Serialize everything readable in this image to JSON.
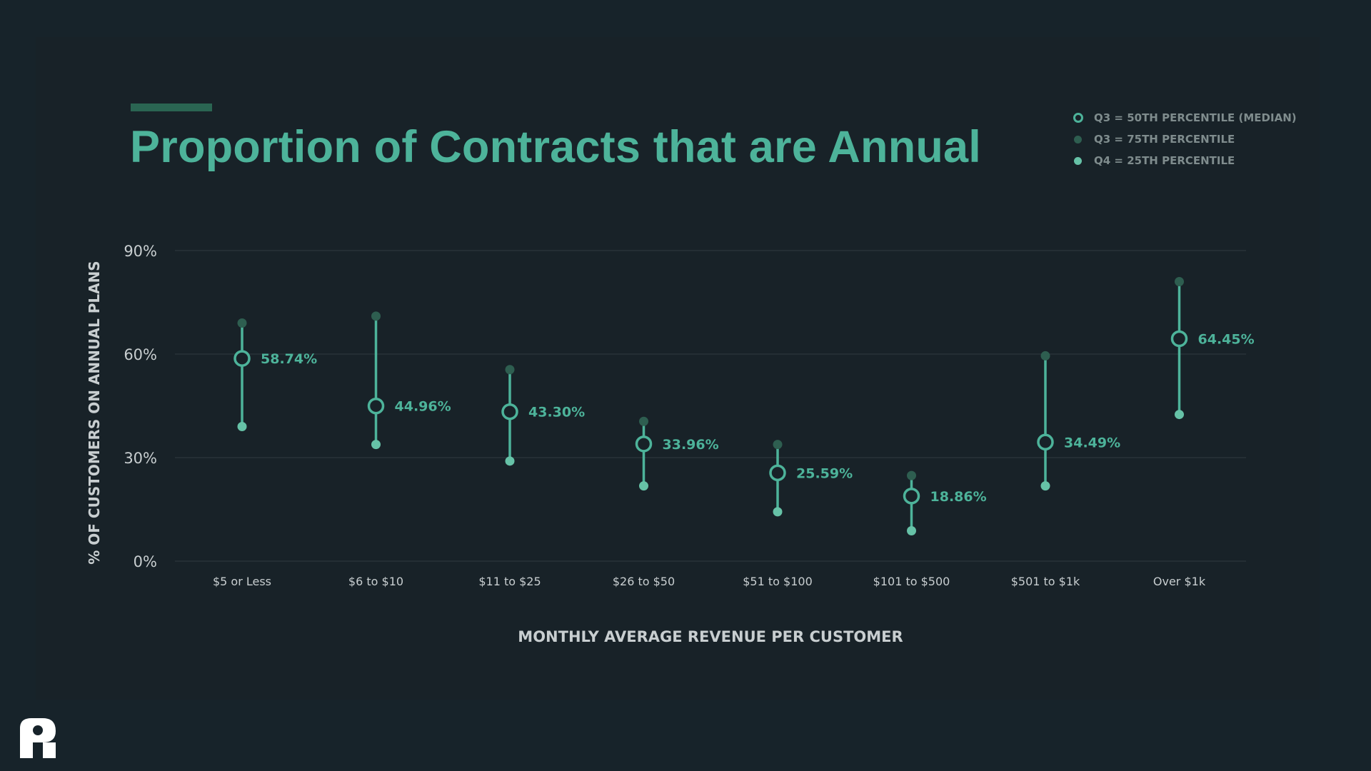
{
  "chart_data": {
    "type": "dot-range",
    "title": "Proportion of Contracts that are Annual",
    "xlabel": "MONTHLY AVERAGE REVENUE PER CUSTOMER",
    "ylabel": "% OF CUSTOMERS ON ANNUAL PLANS",
    "ylim": [
      0,
      90
    ],
    "yticks": [
      0,
      30,
      60,
      90
    ],
    "ytick_labels": [
      "0%",
      "30%",
      "60%",
      "90%"
    ],
    "grid": true,
    "legend_position": "top-right",
    "categories": [
      "$5 or Less",
      "$6 to $10",
      "$11 to $25",
      "$26 to $50",
      "$51 to $100",
      "$101 to $500",
      "$501 to $1k",
      "Over $1k"
    ],
    "series": [
      {
        "name": "Q3 = 50TH PERCENTILE (MEDIAN)",
        "values": [
          58.74,
          44.96,
          43.3,
          33.96,
          25.59,
          18.86,
          34.49,
          64.45
        ]
      },
      {
        "name": "Q3 = 75TH PERCENTILE",
        "values": [
          69,
          71,
          55.5,
          40.5,
          33.8,
          24.8,
          59.5,
          81
        ]
      },
      {
        "name": "Q4 = 25TH PERCENTILE",
        "values": [
          39,
          33.8,
          29,
          21.8,
          14.3,
          8.8,
          21.8,
          42.5
        ]
      }
    ],
    "value_labels": [
      "58.74%",
      "44.96%",
      "43.30%",
      "33.96%",
      "25.59%",
      "18.86%",
      "34.49%",
      "64.45%"
    ]
  },
  "colors": {
    "background": "#17232a",
    "median": "#4db39a",
    "q75": "#2e5e50",
    "q25": "#66c2a7",
    "text_muted": "#7f8c8d",
    "axis_text": "#c8ced0"
  },
  "logo": {
    "icon": "brand-logo-icon"
  }
}
